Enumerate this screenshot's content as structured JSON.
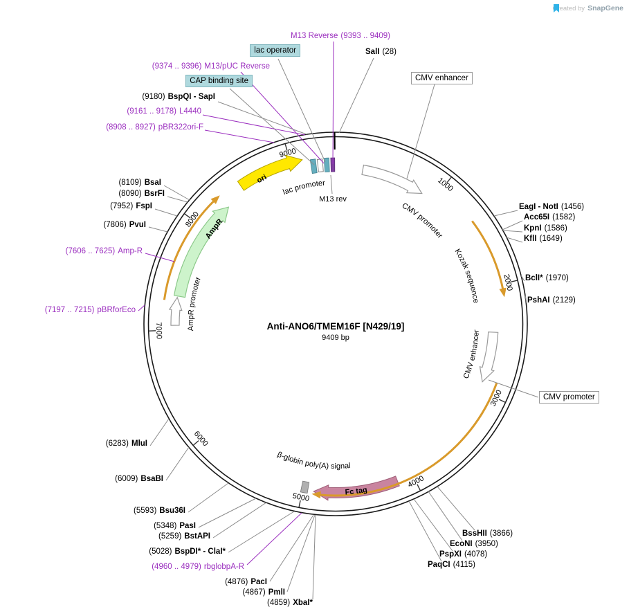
{
  "watermark": {
    "created_by": "Created by",
    "brand": "SnapGene"
  },
  "title": {
    "name": "Anti-ANO6/TMEM16F [N429/19]",
    "bp": "9409 bp"
  },
  "ticks": [
    "1000",
    "2000",
    "3000",
    "4000",
    "5000",
    "6000",
    "7000",
    "8000",
    "9000"
  ],
  "features": {
    "ori": "ori",
    "lac_promoter": "lac promoter",
    "m13_rev": "M13 rev",
    "cmv_promoter_arc": "CMV promoter",
    "kozak": "Kozak sequence",
    "cmv_enhancer_arc": "CMV enhancer",
    "ampr": "AmpR",
    "ampr_promoter": "AmpR promoter",
    "fc_tag": "Fc tag",
    "beta_globin_polya": "β-globin poly(A) signal"
  },
  "boxed": {
    "cmv_enhancer": "CMV enhancer",
    "cmv_promoter": "CMV promoter"
  },
  "highlights": {
    "lac_operator": "lac operator",
    "cap_binding_site": "CAP binding site"
  },
  "callouts": {
    "m13_reverse": {
      "name": "M13 Reverse",
      "pos": "(9393 .. 9409)"
    },
    "sali": {
      "name": "SalI",
      "pos": "(28)"
    },
    "m13_puc_reverse": {
      "pos": "(9374 .. 9396)",
      "name": "M13/pUC Reverse"
    },
    "bspqi_sapi": {
      "pos": "(9180)",
      "name": "BspQI - SapI"
    },
    "l4440": {
      "pos": "(9161 .. 9178)",
      "name": "L4440"
    },
    "pbr322ori_f": {
      "pos": "(8908 .. 8927)",
      "name": "pBR322ori-F"
    },
    "bsai": {
      "pos": "(8109)",
      "name": "BsaI"
    },
    "bsrfi": {
      "pos": "(8090)",
      "name": "BsrFI"
    },
    "fspi": {
      "pos": "(7952)",
      "name": "FspI"
    },
    "pvui": {
      "pos": "(7806)",
      "name": "PvuI"
    },
    "amp_r": {
      "pos": "(7606 .. 7625)",
      "name": "Amp-R"
    },
    "pbrforeco": {
      "pos": "(7197 .. 7215)",
      "name": "pBRforEco"
    },
    "mlui": {
      "pos": "(6283)",
      "name": "MluI"
    },
    "bsabi": {
      "pos": "(6009)",
      "name": "BsaBI"
    },
    "bsu36i": {
      "pos": "(5593)",
      "name": "Bsu36I"
    },
    "pasi": {
      "pos": "(5348)",
      "name": "PasI"
    },
    "bstapi": {
      "pos": "(5259)",
      "name": "BstAPI"
    },
    "bspdi_clai": {
      "pos": "(5028)",
      "name": "BspDI* - ClaI*"
    },
    "rbglobpa_r": {
      "pos": "(4960 .. 4979)",
      "name": "rbglobpA-R"
    },
    "paci": {
      "pos": "(4876)",
      "name": "PacI"
    },
    "pmli": {
      "pos": "(4867)",
      "name": "PmlI"
    },
    "xbai": {
      "pos": "(4859)",
      "name": "XbaI*"
    },
    "eagi_noti": {
      "name": "EagI - NotI",
      "pos": "(1456)"
    },
    "acc65i": {
      "name": "Acc65I",
      "pos": "(1582)"
    },
    "kpni": {
      "name": "KpnI",
      "pos": "(1586)"
    },
    "kfli": {
      "name": "KflI",
      "pos": "(1649)"
    },
    "bcli": {
      "name": "BclI*",
      "pos": "(1970)"
    },
    "pshai": {
      "name": "PshAI",
      "pos": "(2129)"
    },
    "bsshii": {
      "name": "BssHII",
      "pos": "(3866)"
    },
    "econi": {
      "name": "EcoNI",
      "pos": "(3950)"
    },
    "pspxi": {
      "name": "PspXI",
      "pos": "(4078)"
    },
    "paqci": {
      "name": "PaqCI",
      "pos": "(4115)"
    }
  },
  "colors": {
    "primer_purple": "#9B2FBF",
    "highlight_teal": "#AFD9DE",
    "ori_yellow": "#FFE800",
    "ampr_green": "#CDF3CB",
    "fc_pink": "#C9849F",
    "orf_orange": "#D99A2B",
    "backbone": "#1A1A1A"
  }
}
